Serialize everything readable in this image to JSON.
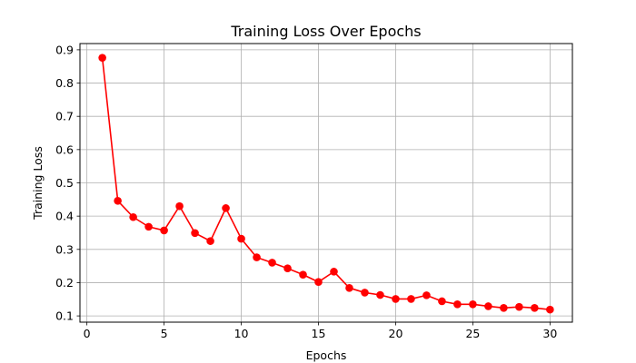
{
  "chart_data": {
    "type": "line",
    "title": "Training Loss Over Epochs",
    "xlabel": "Epochs",
    "ylabel": "Training Loss",
    "xlim": [
      -0.45,
      31.45
    ],
    "ylim": [
      0.0812,
      0.9188
    ],
    "xticks": [
      0,
      5,
      10,
      15,
      20,
      25,
      30
    ],
    "xtick_labels": [
      "0",
      "5",
      "10",
      "15",
      "20",
      "25",
      "30"
    ],
    "yticks": [
      0.1,
      0.2,
      0.3,
      0.4,
      0.5,
      0.6,
      0.7,
      0.8,
      0.9
    ],
    "ytick_labels": [
      "0.1",
      "0.2",
      "0.3",
      "0.4",
      "0.5",
      "0.6",
      "0.7",
      "0.8",
      "0.9"
    ],
    "grid": true,
    "legend": "none",
    "series": [
      {
        "color": "#ff0000",
        "marker": "circle",
        "x": [
          1,
          2,
          3,
          4,
          5,
          6,
          7,
          8,
          9,
          10,
          11,
          12,
          13,
          14,
          15,
          16,
          17,
          18,
          19,
          20,
          21,
          22,
          23,
          24,
          25,
          26,
          27,
          28,
          29,
          30
        ],
        "y": [
          0.876,
          0.446,
          0.397,
          0.368,
          0.357,
          0.43,
          0.349,
          0.325,
          0.424,
          0.332,
          0.276,
          0.26,
          0.243,
          0.224,
          0.202,
          0.233,
          0.184,
          0.17,
          0.163,
          0.151,
          0.151,
          0.162,
          0.144,
          0.135,
          0.135,
          0.129,
          0.124,
          0.127,
          0.124,
          0.119
        ]
      }
    ]
  }
}
